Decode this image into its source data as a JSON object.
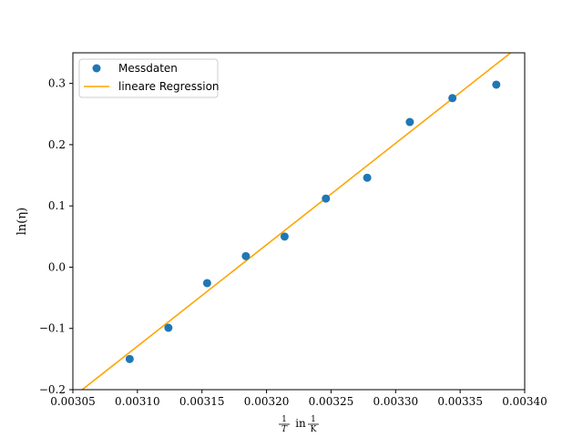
{
  "chart_data": {
    "type": "scatter",
    "xlabel_parts": {
      "frac1_num": "1",
      "frac1_den": "T",
      "word": "in",
      "frac2_num": "1",
      "frac2_den": "K"
    },
    "ylabel": "ln(η)",
    "xlim": [
      0.00305,
      0.0034
    ],
    "ylim": [
      -0.2,
      0.35
    ],
    "xticks": [
      0.00305,
      0.0031,
      0.00315,
      0.0032,
      0.00325,
      0.0033,
      0.00335,
      0.0034
    ],
    "xtick_labels": [
      "0.00305",
      "0.00310",
      "0.00315",
      "0.00320",
      "0.00325",
      "0.00330",
      "0.00335",
      "0.00340"
    ],
    "yticks": [
      -0.2,
      -0.1,
      0.0,
      0.1,
      0.2,
      0.3
    ],
    "ytick_labels": [
      "−0.2",
      "−0.1",
      "0.0",
      "0.1",
      "0.2",
      "0.3"
    ],
    "grid": false,
    "legend_position": "top-left",
    "series": [
      {
        "name": "Messdaten",
        "kind": "scatter",
        "color": "#1f77b4",
        "x": [
          0.003094,
          0.003124,
          0.003154,
          0.003184,
          0.003214,
          0.003246,
          0.003278,
          0.003311,
          0.003344,
          0.003378
        ],
        "y": [
          -0.15,
          -0.099,
          -0.026,
          0.018,
          0.05,
          0.112,
          0.146,
          0.237,
          0.276,
          0.298
        ]
      },
      {
        "name": "lineare Regression",
        "kind": "line",
        "color": "#ffa500",
        "x": [
          0.00305,
          0.0034
        ],
        "y": [
          -0.212,
          0.368
        ]
      }
    ]
  }
}
